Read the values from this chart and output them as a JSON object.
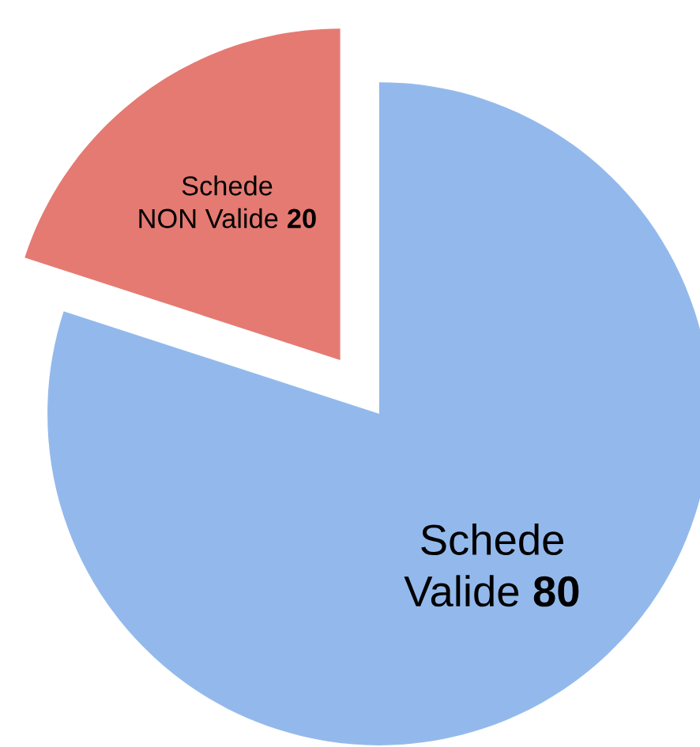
{
  "chart_data": {
    "type": "pie",
    "categories": [
      "Schede\nValide",
      "Schede\nNON Valide"
    ],
    "values": [
      80,
      20
    ],
    "colors": [
      "#93b9ec",
      "#e57a72"
    ],
    "data_labels": true,
    "legend": false
  }
}
